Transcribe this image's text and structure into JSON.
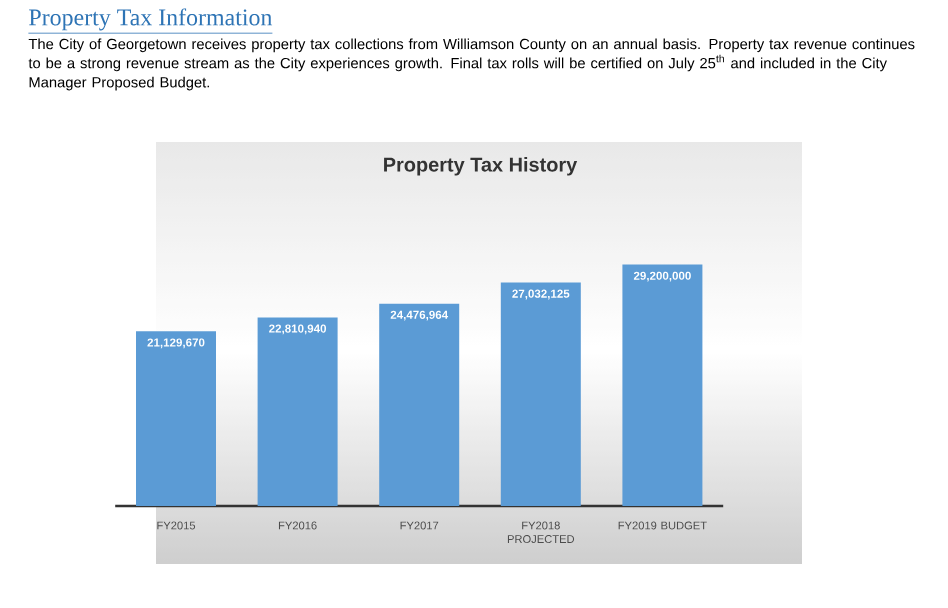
{
  "chart_data": {
    "type": "bar",
    "title": "Property Tax History",
    "annotations": [
      "Property Tax Information",
      "The City of Georgetown receives property tax collections from Williamson County on an annual basis.  Property tax revenue continues to be a strong revenue stream as the City experiences growth.  Final tax rolls will be certified on July 25$^{th}$ and included in the City Manager Proposed Budget."
    ],
    "categories": [
      "FY2015",
      "FY2016",
      "FY2017",
      "FY2018 PROJECTED",
      "FY2019 BUDGET"
    ],
    "values": [
      21129670,
      22810940,
      24476964,
      27032125,
      29200000
    ],
    "value_labels": [
      "21,129,670",
      "22,810,940",
      "24,476,964",
      "27,032,125",
      "29,200,000"
    ],
    "color": "#5b9bd5",
    "ylim": [
      0,
      30000000
    ],
    "tick_labels": "x"
  }
}
